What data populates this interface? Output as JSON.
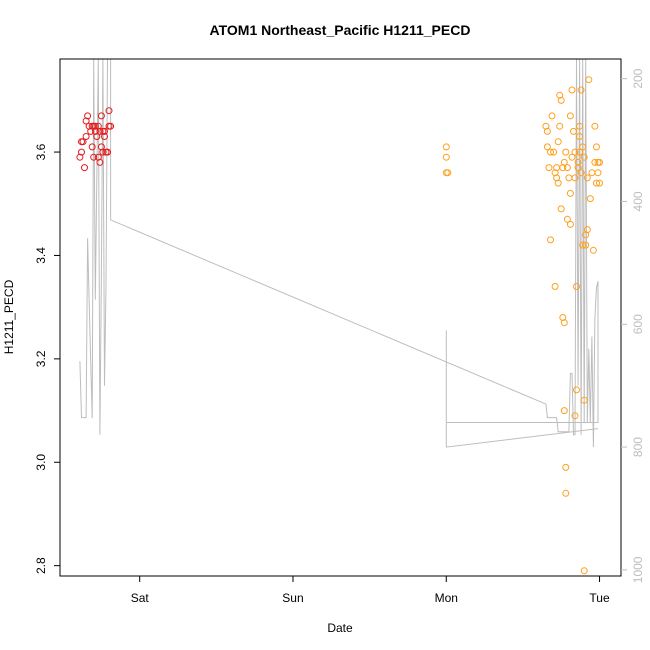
{
  "chart_data": {
    "type": "scatter",
    "title": "ATOM1 Northeast_Pacific H1211_PECD",
    "xlabel": "Date",
    "ylabel": "H1211_PECD",
    "x_ticks": [
      {
        "label": "Sat",
        "value": 0.0
      },
      {
        "label": "Sun",
        "value": 1.0
      },
      {
        "label": "Mon",
        "value": 2.0
      },
      {
        "label": "Tue",
        "value": 3.0
      }
    ],
    "xlim": [
      -0.52,
      3.14
    ],
    "ylim": [
      2.78,
      3.78
    ],
    "y_ticks": [
      2.8,
      3.0,
      3.2,
      3.4,
      3.6
    ],
    "y_right_ticks": [
      200,
      400,
      600,
      800,
      1000
    ],
    "y_right_lim": [
      1010,
      168
    ],
    "grid": false,
    "colors": {
      "series1": "#e41a1c",
      "series2": "#ff9f1c",
      "altitude_line": "#bdbdbd",
      "axis": "#000000"
    },
    "series": [
      {
        "color": "#e41a1c",
        "points": [
          [
            -0.39,
            3.59
          ],
          [
            -0.38,
            3.6
          ],
          [
            -0.38,
            3.62
          ],
          [
            -0.37,
            3.62
          ],
          [
            -0.36,
            3.57
          ],
          [
            -0.35,
            3.63
          ],
          [
            -0.35,
            3.66
          ],
          [
            -0.34,
            3.67
          ],
          [
            -0.33,
            3.65
          ],
          [
            -0.32,
            3.64
          ],
          [
            -0.31,
            3.65
          ],
          [
            -0.31,
            3.61
          ],
          [
            -0.3,
            3.65
          ],
          [
            -0.3,
            3.59
          ],
          [
            -0.29,
            3.65
          ],
          [
            -0.29,
            3.64
          ],
          [
            -0.28,
            3.63
          ],
          [
            -0.27,
            3.65
          ],
          [
            -0.27,
            3.59
          ],
          [
            -0.26,
            3.58
          ],
          [
            -0.26,
            3.64
          ],
          [
            -0.25,
            3.67
          ],
          [
            -0.25,
            3.61
          ],
          [
            -0.24,
            3.64
          ],
          [
            -0.24,
            3.6
          ],
          [
            -0.23,
            3.63
          ],
          [
            -0.23,
            3.64
          ],
          [
            -0.22,
            3.6
          ],
          [
            -0.21,
            3.6
          ],
          [
            -0.2,
            3.68
          ],
          [
            -0.2,
            3.65
          ],
          [
            -0.19,
            3.65
          ]
        ]
      },
      {
        "color": "#ff9f1c",
        "points": [
          [
            2.0,
            3.61
          ],
          [
            2.0,
            3.59
          ],
          [
            2.0,
            3.56
          ],
          [
            2.01,
            3.56
          ],
          [
            2.65,
            3.65
          ],
          [
            2.66,
            3.64
          ],
          [
            2.66,
            3.61
          ],
          [
            2.67,
            3.57
          ],
          [
            2.68,
            3.6
          ],
          [
            2.68,
            3.43
          ],
          [
            2.69,
            3.67
          ],
          [
            2.7,
            3.6
          ],
          [
            2.71,
            3.34
          ],
          [
            2.71,
            3.56
          ],
          [
            2.72,
            3.55
          ],
          [
            2.72,
            3.57
          ],
          [
            2.73,
            3.54
          ],
          [
            2.73,
            3.62
          ],
          [
            2.74,
            3.71
          ],
          [
            2.74,
            3.65
          ],
          [
            2.75,
            3.7
          ],
          [
            2.75,
            3.49
          ],
          [
            2.76,
            3.57
          ],
          [
            2.76,
            3.28
          ],
          [
            2.77,
            3.27
          ],
          [
            2.77,
            3.58
          ],
          [
            2.77,
            3.1
          ],
          [
            2.78,
            3.6
          ],
          [
            2.78,
            2.99
          ],
          [
            2.78,
            2.94
          ],
          [
            2.79,
            3.47
          ],
          [
            2.79,
            3.57
          ],
          [
            2.8,
            3.55
          ],
          [
            2.81,
            3.67
          ],
          [
            2.81,
            3.52
          ],
          [
            2.81,
            3.46
          ],
          [
            2.82,
            3.59
          ],
          [
            2.82,
            3.72
          ],
          [
            2.83,
            3.64
          ],
          [
            2.84,
            3.55
          ],
          [
            2.84,
            3.6
          ],
          [
            2.84,
            3.09
          ],
          [
            2.85,
            3.14
          ],
          [
            2.85,
            3.34
          ],
          [
            2.86,
            3.57
          ],
          [
            2.86,
            3.58
          ],
          [
            2.87,
            3.65
          ],
          [
            2.87,
            3.6
          ],
          [
            2.87,
            3.63
          ],
          [
            2.88,
            3.72
          ],
          [
            2.88,
            3.56
          ],
          [
            2.89,
            3.61
          ],
          [
            2.89,
            3.42
          ],
          [
            2.9,
            3.59
          ],
          [
            2.9,
            3.12
          ],
          [
            2.9,
            2.79
          ],
          [
            2.91,
            3.42
          ],
          [
            2.91,
            3.44
          ],
          [
            2.92,
            3.45
          ],
          [
            2.92,
            3.55
          ],
          [
            2.93,
            3.74
          ],
          [
            2.94,
            3.51
          ],
          [
            2.95,
            3.56
          ],
          [
            2.96,
            3.41
          ],
          [
            2.97,
            3.65
          ],
          [
            2.97,
            3.58
          ],
          [
            2.98,
            3.61
          ],
          [
            2.98,
            3.54
          ],
          [
            2.99,
            3.58
          ],
          [
            2.99,
            3.56
          ],
          [
            3.0,
            3.54
          ],
          [
            3.0,
            3.58
          ]
        ]
      }
    ],
    "altitude_line": [
      [
        -0.39,
        660
      ],
      [
        -0.38,
        752
      ],
      [
        -0.35,
        752
      ],
      [
        -0.34,
        460
      ],
      [
        -0.33,
        560
      ],
      [
        -0.31,
        753
      ],
      [
        -0.3,
        168
      ],
      [
        -0.29,
        560
      ],
      [
        -0.27,
        168
      ],
      [
        -0.26,
        780
      ],
      [
        -0.25,
        520
      ],
      [
        -0.24,
        168
      ],
      [
        -0.23,
        700
      ],
      [
        -0.22,
        540
      ],
      [
        -0.21,
        168
      ],
      [
        -0.19,
        168
      ],
      [
        -0.19,
        430
      ],
      [
        2.65,
        730
      ],
      [
        2.66,
        752
      ],
      [
        2.72,
        752
      ],
      [
        2.73,
        775
      ],
      [
        2.8,
        775
      ],
      [
        2.81,
        680
      ],
      [
        2.82,
        680
      ],
      [
        2.83,
        780
      ],
      [
        2.84,
        780
      ],
      [
        2.85,
        168
      ],
      [
        2.86,
        700
      ],
      [
        2.87,
        168
      ],
      [
        2.88,
        780
      ],
      [
        2.89,
        168
      ],
      [
        2.9,
        760
      ],
      [
        2.91,
        168
      ],
      [
        2.92,
        760
      ],
      [
        2.93,
        640
      ],
      [
        2.94,
        760
      ],
      [
        2.95,
        620
      ],
      [
        2.96,
        800
      ],
      [
        2.97,
        590
      ],
      [
        2.98,
        540
      ],
      [
        2.99,
        530
      ],
      [
        2.99,
        760
      ],
      [
        2.0,
        760
      ],
      [
        2.0,
        610
      ],
      [
        2.0,
        800
      ],
      [
        2.99,
        770
      ]
    ]
  }
}
